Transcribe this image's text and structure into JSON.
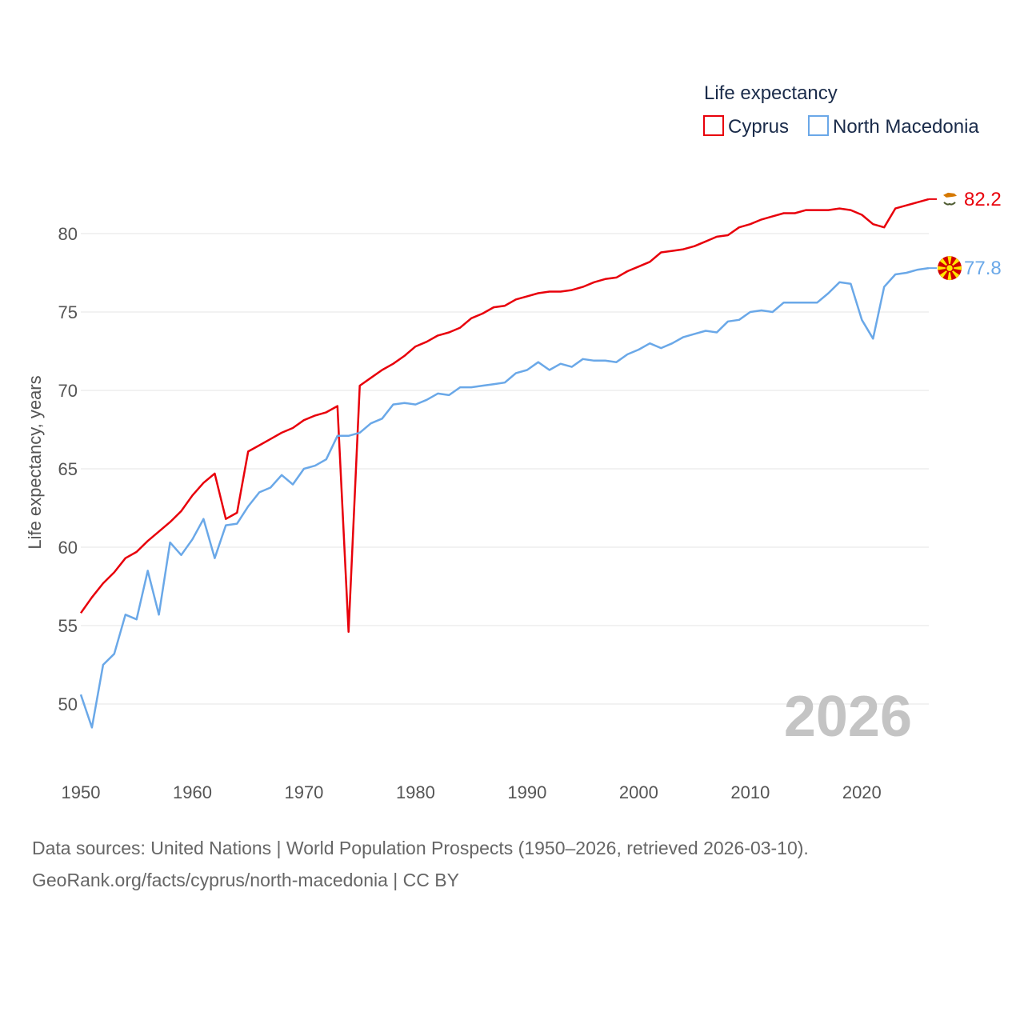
{
  "chart_data": {
    "type": "line",
    "legend_title": "Life expectancy",
    "ylabel": "Life expectancy, years",
    "xlabel": "",
    "xlim": [
      1950,
      2026
    ],
    "ylim": [
      47,
      84
    ],
    "x_ticks": [
      1950,
      1960,
      1970,
      1980,
      1990,
      2000,
      2010,
      2020
    ],
    "y_ticks": [
      50,
      55,
      60,
      65,
      70,
      75,
      80
    ],
    "year_label": "2026",
    "legend_position": "top-right",
    "series": [
      {
        "name": "Cyprus",
        "color": "#e8000b",
        "end_label": "82.2",
        "flag_icon": "cyprus-flag-icon",
        "years": [
          1950,
          1951,
          1952,
          1953,
          1954,
          1955,
          1956,
          1957,
          1958,
          1959,
          1960,
          1961,
          1962,
          1963,
          1964,
          1965,
          1966,
          1967,
          1968,
          1969,
          1970,
          1971,
          1972,
          1973,
          1974,
          1975,
          1976,
          1977,
          1978,
          1979,
          1980,
          1981,
          1982,
          1983,
          1984,
          1985,
          1986,
          1987,
          1988,
          1989,
          1990,
          1991,
          1992,
          1993,
          1994,
          1995,
          1996,
          1997,
          1998,
          1999,
          2000,
          2001,
          2002,
          2003,
          2004,
          2005,
          2006,
          2007,
          2008,
          2009,
          2010,
          2011,
          2012,
          2013,
          2014,
          2015,
          2016,
          2017,
          2018,
          2019,
          2020,
          2021,
          2022,
          2023,
          2024,
          2025,
          2026
        ],
        "values": [
          55.8,
          56.8,
          57.7,
          58.4,
          59.3,
          59.7,
          60.4,
          61.0,
          61.6,
          62.3,
          63.3,
          64.1,
          64.7,
          61.8,
          62.2,
          66.1,
          66.5,
          66.9,
          67.3,
          67.6,
          68.1,
          68.4,
          68.6,
          69.0,
          54.6,
          70.3,
          70.8,
          71.3,
          71.7,
          72.2,
          72.8,
          73.1,
          73.5,
          73.7,
          74.0,
          74.6,
          74.9,
          75.3,
          75.4,
          75.8,
          76.0,
          76.2,
          76.3,
          76.3,
          76.4,
          76.6,
          76.9,
          77.1,
          77.2,
          77.6,
          77.9,
          78.2,
          78.8,
          78.9,
          79.0,
          79.2,
          79.5,
          79.8,
          79.9,
          80.4,
          80.6,
          80.9,
          81.1,
          81.3,
          81.3,
          81.5,
          81.5,
          81.5,
          81.6,
          81.5,
          81.2,
          80.6,
          80.4,
          81.6,
          81.8,
          82.0,
          82.2
        ]
      },
      {
        "name": "North Macedonia",
        "color": "#6aa8e8",
        "end_label": "77.8",
        "flag_icon": "north-macedonia-flag-icon",
        "years": [
          1950,
          1951,
          1952,
          1953,
          1954,
          1955,
          1956,
          1957,
          1958,
          1959,
          1960,
          1961,
          1962,
          1963,
          1964,
          1965,
          1966,
          1967,
          1968,
          1969,
          1970,
          1971,
          1972,
          1973,
          1974,
          1975,
          1976,
          1977,
          1978,
          1979,
          1980,
          1981,
          1982,
          1983,
          1984,
          1985,
          1986,
          1987,
          1988,
          1989,
          1990,
          1991,
          1992,
          1993,
          1994,
          1995,
          1996,
          1997,
          1998,
          1999,
          2000,
          2001,
          2002,
          2003,
          2004,
          2005,
          2006,
          2007,
          2008,
          2009,
          2010,
          2011,
          2012,
          2013,
          2014,
          2015,
          2016,
          2017,
          2018,
          2019,
          2020,
          2021,
          2022,
          2023,
          2024,
          2025,
          2026
        ],
        "values": [
          50.6,
          48.5,
          52.5,
          53.2,
          55.7,
          55.4,
          58.5,
          55.7,
          60.3,
          59.5,
          60.5,
          61.8,
          59.3,
          61.4,
          61.5,
          62.6,
          63.5,
          63.8,
          64.6,
          64.0,
          65.0,
          65.2,
          65.6,
          67.1,
          67.1,
          67.3,
          67.9,
          68.2,
          69.1,
          69.2,
          69.1,
          69.4,
          69.8,
          69.7,
          70.2,
          70.2,
          70.3,
          70.4,
          70.5,
          71.1,
          71.3,
          71.8,
          71.3,
          71.7,
          71.5,
          72.0,
          71.9,
          71.9,
          71.8,
          72.3,
          72.6,
          73.0,
          72.7,
          73.0,
          73.4,
          73.6,
          73.8,
          73.7,
          74.4,
          74.5,
          75.0,
          75.1,
          75.0,
          75.6,
          75.6,
          75.6,
          75.6,
          76.2,
          76.9,
          76.8,
          74.5,
          73.3,
          76.6,
          77.4,
          77.5,
          77.7,
          77.8
        ]
      }
    ]
  },
  "footer": {
    "line1": "Data sources: United Nations | World Population Prospects (1950–2026, retrieved 2026-03-10).",
    "line2": "GeoRank.org/facts/cyprus/north-macedonia | CC BY"
  }
}
